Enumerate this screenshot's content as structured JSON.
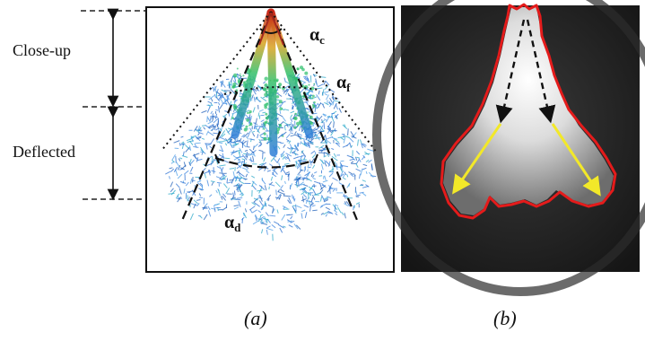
{
  "panel_a": {
    "label_closeup": "Close-up",
    "label_deflected": "Deflected",
    "angle_c": "αc",
    "angle_f": "αf",
    "angle_d": "αd",
    "caption": "(a)"
  },
  "panel_b": {
    "caption": "(b)",
    "outline_color": "#e41b1b",
    "arrow_color": "#f2e829"
  },
  "colors": {
    "spray_blue": "#2a6fd1",
    "spray_green": "#2bbf6a",
    "spray_red": "#cc2a1a"
  }
}
